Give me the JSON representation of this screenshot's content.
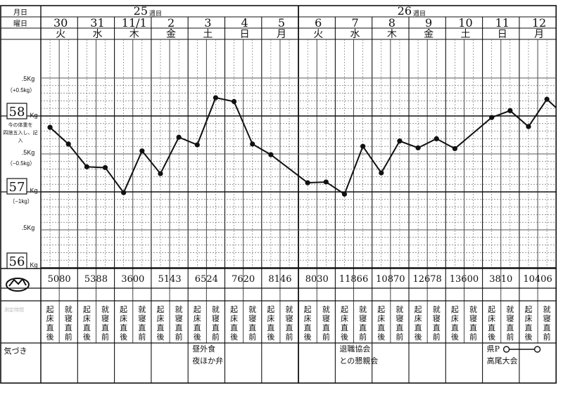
{
  "header": {
    "month_day_label": "月日",
    "weekday_label": "曜日",
    "week_unit": "週目",
    "weeks": [
      {
        "number": "25",
        "label": "週目"
      },
      {
        "number": "26",
        "label": "週目"
      }
    ]
  },
  "days": [
    {
      "date": "30",
      "weekday": "火",
      "weight": 57.85,
      "evening": 57.63,
      "steps": "5080"
    },
    {
      "date": "31",
      "weekday": "水",
      "weight": 57.33,
      "evening": 57.32,
      "steps": "5388"
    },
    {
      "date": "11/1",
      "weekday": "木",
      "weight": 56.99,
      "evening": 57.54,
      "steps": "3600"
    },
    {
      "date": "2",
      "weekday": "金",
      "weight": 57.24,
      "evening": 57.72,
      "steps": "5143"
    },
    {
      "date": "3",
      "weekday": "土",
      "weight": 57.62,
      "evening": 58.24,
      "steps": "6524"
    },
    {
      "date": "4",
      "weekday": "日",
      "weight": 58.19,
      "evening": 57.63,
      "steps": "7620"
    },
    {
      "date": "5",
      "weekday": "月",
      "weight": 57.49,
      "evening": null,
      "steps": "8146"
    },
    {
      "date": "6",
      "weekday": "火",
      "weight": 57.12,
      "evening": 57.13,
      "steps": "8030"
    },
    {
      "date": "7",
      "weekday": "水",
      "weight": 56.97,
      "evening": 57.6,
      "steps": "11866"
    },
    {
      "date": "8",
      "weekday": "木",
      "weight": 57.25,
      "evening": 57.67,
      "steps": "10870"
    },
    {
      "date": "9",
      "weekday": "金",
      "weight": 57.58,
      "evening": 57.7,
      "steps": "12678"
    },
    {
      "date": "10",
      "weekday": "土",
      "weight": 57.57,
      "evening": null,
      "steps": "13600"
    },
    {
      "date": "11",
      "weekday": "日",
      "weight": 57.98,
      "evening": 58.07,
      "steps": "3810"
    },
    {
      "date": "12",
      "weekday": "月",
      "weight": 57.86,
      "evening": 58.22,
      "steps": "10406"
    }
  ],
  "y_axis": {
    "labels": [
      {
        "text": ".5Kg",
        "value": 58.5
      },
      {
        "text": "（+0.5kg）",
        "value": 58.4
      },
      {
        "text": "58",
        "unit": "Kg",
        "value": 58.0
      },
      {
        "text": "今の体重を四捨五入し、記入",
        "value": 57.8
      },
      {
        "text": ".5Kg",
        "value": 57.5
      },
      {
        "text": "（−0.5kg）",
        "value": 57.4
      },
      {
        "text": "57",
        "unit": "Kg",
        "value": 57.0
      },
      {
        "text": "（−1kg）",
        "value": 56.9
      },
      {
        "text": ".5Kg",
        "value": 56.5
      },
      {
        "text": "56",
        "unit": "Kg",
        "value": 56.0
      }
    ],
    "range": [
      56.0,
      58.5
    ]
  },
  "rows": {
    "morning": "起床直後",
    "night": "就寝直前",
    "notes_label": "気づき",
    "bottom_label_faint": "測定時間"
  },
  "notes": [
    {
      "day_index": 4,
      "lines": [
        "昼外食",
        "夜ほか弁"
      ]
    },
    {
      "day_index": 8,
      "lines": [
        "退職協会",
        "との懇親会"
      ]
    },
    {
      "day_index": 12,
      "lines": [
        "県P",
        "高尾大会"
      ]
    }
  ],
  "colors": {
    "ink": "#111111",
    "grid": "#555555",
    "paper": "#ffffff"
  }
}
